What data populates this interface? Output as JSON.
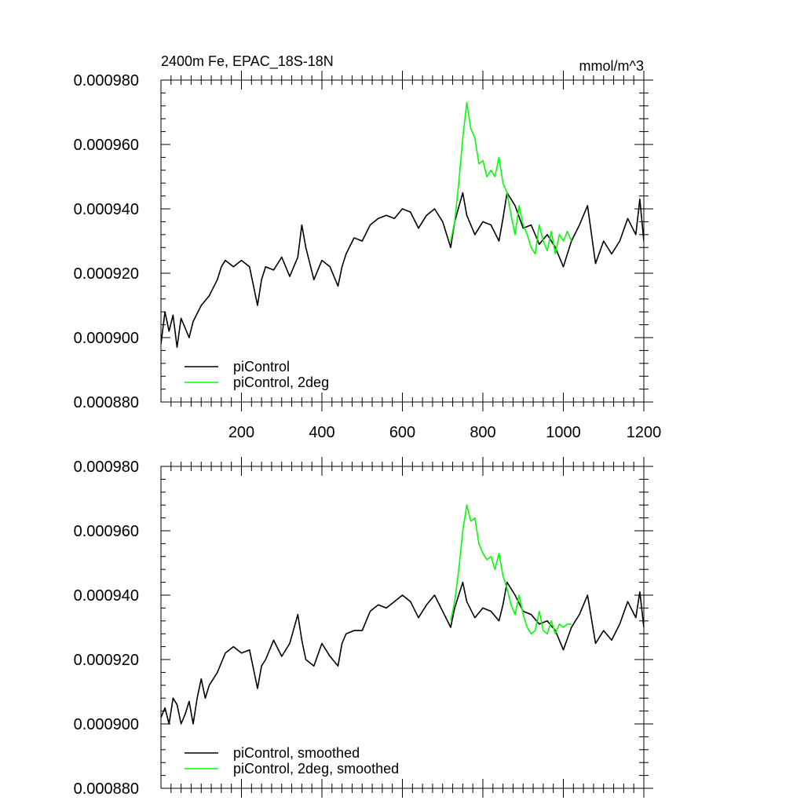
{
  "chart_data": [
    {
      "type": "line",
      "title": "2400m Fe, EPAC_18S-18N",
      "units": "mmol/m^3",
      "xlim": [
        0,
        1200
      ],
      "ylim": [
        0.00088,
        0.00098
      ],
      "xticks": [
        200,
        400,
        600,
        800,
        1000,
        1200
      ],
      "xtick_labels": [
        "200",
        "400",
        "600",
        "800",
        "1000",
        "1200"
      ],
      "yticks": [
        0.00088,
        0.0009,
        0.00092,
        0.00094,
        0.00096,
        0.00098
      ],
      "ytick_labels": [
        "0.000880",
        "0.000900",
        "0.000920",
        "0.000940",
        "0.000960",
        "0.000980"
      ],
      "legend_position": "bottom-left",
      "series": [
        {
          "name": "piControl",
          "color": "#000000",
          "x": [
            0,
            10,
            20,
            30,
            40,
            50,
            60,
            70,
            80,
            100,
            120,
            140,
            150,
            160,
            180,
            200,
            220,
            240,
            250,
            260,
            280,
            300,
            320,
            340,
            350,
            360,
            380,
            400,
            420,
            440,
            450,
            460,
            480,
            500,
            520,
            540,
            560,
            580,
            600,
            620,
            640,
            660,
            680,
            700,
            720,
            730,
            750,
            760,
            780,
            800,
            820,
            840,
            850,
            860,
            880,
            900,
            920,
            940,
            960,
            980,
            1000,
            1020,
            1040,
            1060,
            1080,
            1100,
            1120,
            1140,
            1160,
            1180,
            1190,
            1200
          ],
          "y": [
            0.000898,
            0.000908,
            0.000902,
            0.000907,
            0.000897,
            0.000906,
            0.000903,
            0.0009,
            0.000905,
            0.00091,
            0.000913,
            0.000918,
            0.000922,
            0.000924,
            0.000922,
            0.000924,
            0.000922,
            0.00091,
            0.000918,
            0.000922,
            0.000921,
            0.000925,
            0.000919,
            0.000925,
            0.000935,
            0.000928,
            0.000918,
            0.000924,
            0.000922,
            0.000916,
            0.000922,
            0.000926,
            0.000931,
            0.00093,
            0.000935,
            0.000937,
            0.000938,
            0.000937,
            0.00094,
            0.000939,
            0.000934,
            0.000938,
            0.00094,
            0.000936,
            0.000928,
            0.000936,
            0.000945,
            0.000938,
            0.000932,
            0.000936,
            0.000935,
            0.00093,
            0.000937,
            0.000945,
            0.000941,
            0.000934,
            0.000935,
            0.000929,
            0.000932,
            0.000928,
            0.000922,
            0.00093,
            0.000935,
            0.000941,
            0.000923,
            0.00093,
            0.000926,
            0.00093,
            0.000937,
            0.000932,
            0.000943,
            0.00093
          ]
        },
        {
          "name": "piControl, 2deg",
          "color": "#00ff00",
          "x": [
            720,
            730,
            740,
            750,
            760,
            770,
            780,
            790,
            800,
            810,
            820,
            830,
            840,
            850,
            860,
            870,
            880,
            890,
            900,
            910,
            920,
            930,
            940,
            950,
            960,
            970,
            980,
            990,
            1000,
            1010,
            1020
          ],
          "y": [
            0.00093,
            0.000936,
            0.000948,
            0.000962,
            0.000973,
            0.000965,
            0.000962,
            0.000954,
            0.000955,
            0.00095,
            0.000952,
            0.00095,
            0.000956,
            0.000948,
            0.000945,
            0.000938,
            0.000932,
            0.000941,
            0.000935,
            0.000932,
            0.000928,
            0.000926,
            0.000935,
            0.00093,
            0.000927,
            0.000933,
            0.000926,
            0.000932,
            0.00093,
            0.000933,
            0.00093
          ]
        }
      ]
    },
    {
      "type": "line",
      "title": "",
      "xlim": [
        0,
        1200
      ],
      "ylim": [
        0.00088,
        0.00098
      ],
      "yticks": [
        0.00088,
        0.0009,
        0.00092,
        0.00094,
        0.00096,
        0.00098
      ],
      "ytick_labels": [
        "0.000880",
        "0.000900",
        "0.000920",
        "0.000940",
        "0.000960",
        "0.000980"
      ],
      "legend_position": "bottom-left",
      "series": [
        {
          "name": "piControl, smoothed",
          "color": "#000000",
          "x": [
            0,
            10,
            20,
            30,
            40,
            50,
            60,
            70,
            80,
            90,
            100,
            110,
            120,
            140,
            160,
            180,
            200,
            220,
            240,
            250,
            260,
            280,
            300,
            320,
            340,
            350,
            360,
            380,
            400,
            420,
            440,
            450,
            460,
            480,
            500,
            520,
            540,
            560,
            580,
            600,
            620,
            640,
            660,
            680,
            700,
            720,
            730,
            750,
            760,
            780,
            800,
            820,
            840,
            850,
            860,
            880,
            900,
            920,
            940,
            960,
            980,
            1000,
            1020,
            1040,
            1060,
            1080,
            1100,
            1120,
            1140,
            1160,
            1180,
            1190,
            1200
          ],
          "y": [
            0.000902,
            0.000905,
            0.0009,
            0.000908,
            0.000906,
            0.0009,
            0.000903,
            0.000907,
            0.0009,
            0.000908,
            0.000914,
            0.000908,
            0.000912,
            0.000916,
            0.000922,
            0.000924,
            0.000922,
            0.000923,
            0.000911,
            0.000918,
            0.00092,
            0.000926,
            0.000921,
            0.000925,
            0.000934,
            0.000926,
            0.00092,
            0.000918,
            0.000925,
            0.000921,
            0.000918,
            0.000925,
            0.000928,
            0.000929,
            0.000929,
            0.000935,
            0.000937,
            0.000936,
            0.000938,
            0.00094,
            0.000938,
            0.000933,
            0.000937,
            0.00094,
            0.000935,
            0.00093,
            0.000936,
            0.000944,
            0.000938,
            0.000933,
            0.000936,
            0.000935,
            0.000932,
            0.000937,
            0.000944,
            0.00094,
            0.000935,
            0.000934,
            0.000931,
            0.000932,
            0.000929,
            0.000923,
            0.00093,
            0.000934,
            0.00094,
            0.000925,
            0.000929,
            0.000926,
            0.000931,
            0.000938,
            0.000933,
            0.000941,
            0.00093
          ]
        },
        {
          "name": "piControl, 2deg, smoothed",
          "color": "#00ff00",
          "x": [
            720,
            730,
            740,
            750,
            760,
            770,
            780,
            790,
            800,
            810,
            820,
            830,
            840,
            850,
            860,
            870,
            880,
            890,
            900,
            910,
            920,
            930,
            940,
            950,
            960,
            970,
            980,
            990,
            1000,
            1010,
            1020
          ],
          "y": [
            0.000932,
            0.000938,
            0.000948,
            0.00096,
            0.000968,
            0.000963,
            0.000964,
            0.000956,
            0.000953,
            0.000951,
            0.000952,
            0.000948,
            0.000953,
            0.000946,
            0.000942,
            0.000937,
            0.000934,
            0.00094,
            0.000934,
            0.00093,
            0.000928,
            0.000929,
            0.000935,
            0.000929,
            0.000928,
            0.000932,
            0.000928,
            0.000931,
            0.00093,
            0.000931,
            0.000931
          ]
        }
      ]
    }
  ]
}
